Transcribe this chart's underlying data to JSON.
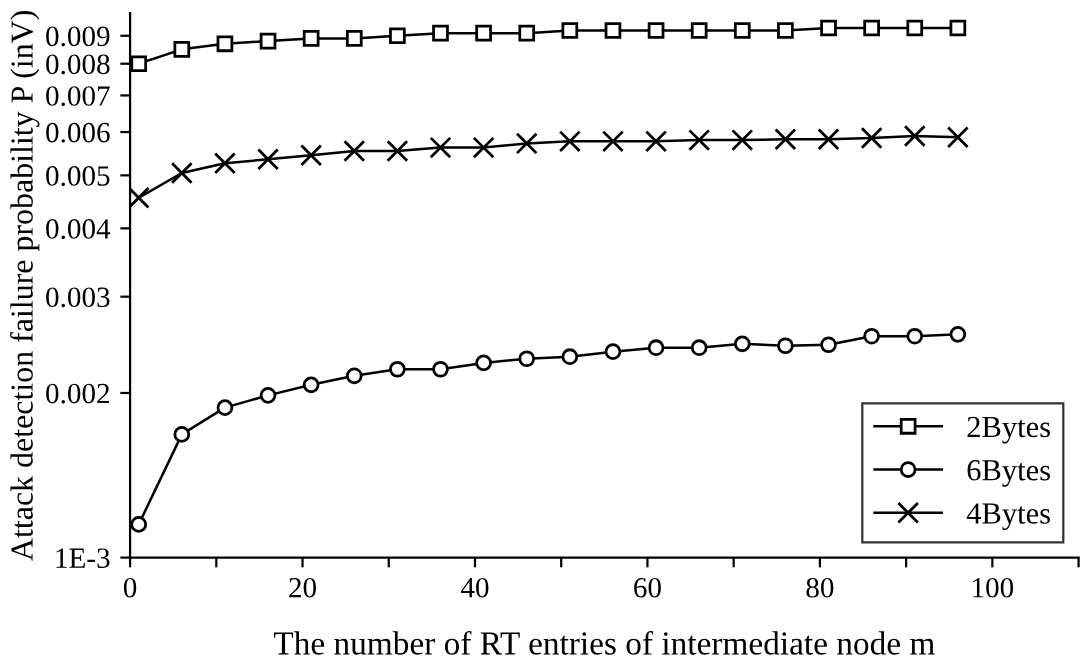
{
  "chart_data": {
    "type": "line",
    "xlabel": "The number of RT entries of intermediate node m",
    "ylabel": "Attack detection failure probability P (inV)",
    "x": [
      1,
      6,
      11,
      16,
      21,
      26,
      31,
      36,
      41,
      46,
      51,
      56,
      61,
      66,
      71,
      76,
      81,
      86,
      91,
      96
    ],
    "series": [
      {
        "name": "2Bytes",
        "color": "#000000",
        "marker": "square",
        "values": [
          0.008,
          0.0085,
          0.0087,
          0.0088,
          0.0089,
          0.0089,
          0.009,
          0.0091,
          0.0091,
          0.0091,
          0.0092,
          0.0092,
          0.0092,
          0.0092,
          0.0092,
          0.0092,
          0.0093,
          0.0093,
          0.0093,
          0.0093
        ]
      },
      {
        "name": "6Bytes",
        "color": "#000000",
        "marker": "circle",
        "values": [
          0.00115,
          0.00168,
          0.00188,
          0.00198,
          0.00207,
          0.00215,
          0.00221,
          0.00221,
          0.00227,
          0.00231,
          0.00233,
          0.00238,
          0.00242,
          0.00242,
          0.00246,
          0.00244,
          0.00245,
          0.00254,
          0.00254,
          0.00256
        ]
      },
      {
        "name": "4Bytes",
        "color": "#000000",
        "marker": "cross",
        "values": [
          0.00455,
          0.00505,
          0.00526,
          0.00535,
          0.00544,
          0.00554,
          0.00554,
          0.00562,
          0.00562,
          0.00572,
          0.00577,
          0.00577,
          0.00577,
          0.0058,
          0.0058,
          0.00582,
          0.00582,
          0.00585,
          0.0059,
          0.00587
        ]
      }
    ],
    "log": "y",
    "xlim": [
      0,
      110
    ],
    "xticks": [
      0,
      {
        "value": 10,
        "label": null
      },
      20,
      {
        "value": 30,
        "label": null
      },
      40,
      {
        "value": 50,
        "label": null
      },
      60,
      {
        "value": 70,
        "label": null
      },
      80,
      {
        "value": 90,
        "label": null
      },
      100,
      {
        "value": 110,
        "label": null
      }
    ],
    "ylim": [
      0.001,
      0.0099
    ],
    "yticks": [
      {
        "value": 0.001,
        "label": "1E-3"
      },
      0.002,
      0.003,
      0.004,
      0.005,
      0.006,
      0.007,
      0.008,
      0.009
    ],
    "legend": "bottom right",
    "grid": false,
    "line_style": "solid"
  }
}
